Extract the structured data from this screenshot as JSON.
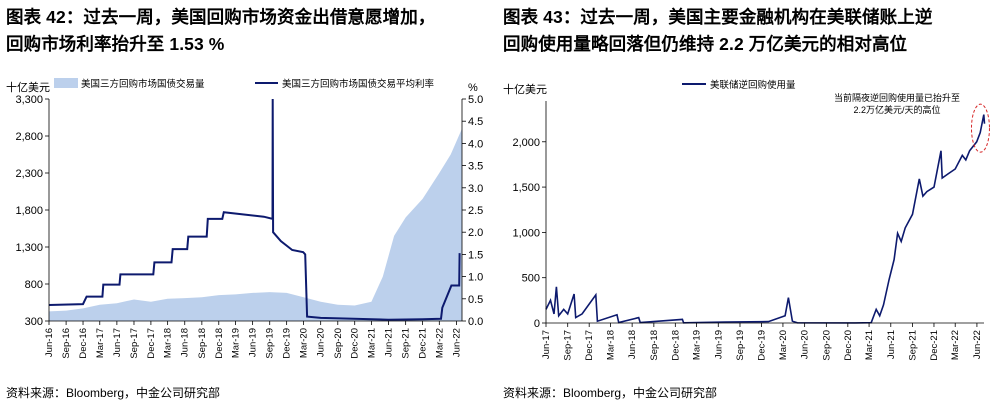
{
  "panels": [
    {
      "title_lines": [
        "图表 42：过去一周，美国回购市场资金出借意愿增加，",
        "回购市场利率抬升至 1.53 %"
      ],
      "source": "资料来源：Bloomberg，中金公司研究部"
    },
    {
      "title_lines": [
        "图表 43：过去一周，美国主要金融机构在美联储账上逆",
        "回购使用量略回落但仍维持 2.2 万亿美元的相对高位"
      ],
      "source": "资料来源：Bloomberg，中金公司研究部"
    }
  ],
  "chart_data": [
    {
      "type": "area+line",
      "title": "",
      "y_left_label": "十亿美元",
      "y_right_label": "%",
      "y_left_ticks": [
        300,
        800,
        1300,
        1800,
        2300,
        2800,
        3300
      ],
      "y_right_ticks": [
        "0.0",
        "0.5",
        "1.0",
        "1.5",
        "2.0",
        "2.5",
        "3.0",
        "3.5",
        "4.0",
        "4.5",
        "5.0"
      ],
      "ylim_left": [
        300,
        3300
      ],
      "ylim_right": [
        0,
        5
      ],
      "x_ticks": [
        "Jun-16",
        "Sep-16",
        "Dec-16",
        "Mar-17",
        "Jun-17",
        "Sep-17",
        "Dec-17",
        "Mar-18",
        "Jun-18",
        "Sep-18",
        "Dec-18",
        "Mar-19",
        "Jun-19",
        "Sep-19",
        "Dec-19",
        "Mar-20",
        "Jun-20",
        "Sep-20",
        "Dec-20",
        "Mar-21",
        "Jun-21",
        "Sep-21",
        "Dec-21",
        "Mar-22",
        "Jun-22"
      ],
      "xlim": [
        "2016-06",
        "2022-07"
      ],
      "legend": [
        "美国三方回购市场国债交易量",
        "美国三方回购市场国债交易平均利率"
      ],
      "legend_position": "top",
      "series": [
        {
          "name": "美国三方回购市场国债交易量",
          "axis": "left",
          "style": "area",
          "color": "#bcd0ec",
          "points": [
            [
              "2016-06-01",
              430
            ],
            [
              "2016-09-01",
              440
            ],
            [
              "2016-12-01",
              470
            ],
            [
              "2017-03-01",
              520
            ],
            [
              "2017-06-01",
              540
            ],
            [
              "2017-09-01",
              590
            ],
            [
              "2017-12-01",
              560
            ],
            [
              "2018-03-01",
              600
            ],
            [
              "2018-06-01",
              610
            ],
            [
              "2018-09-01",
              620
            ],
            [
              "2018-12-01",
              650
            ],
            [
              "2019-03-01",
              660
            ],
            [
              "2019-06-01",
              680
            ],
            [
              "2019-09-01",
              690
            ],
            [
              "2019-12-01",
              680
            ],
            [
              "2020-03-01",
              620
            ],
            [
              "2020-06-01",
              560
            ],
            [
              "2020-09-01",
              520
            ],
            [
              "2020-12-01",
              510
            ],
            [
              "2021-03-01",
              560
            ],
            [
              "2021-05-01",
              900
            ],
            [
              "2021-07-01",
              1450
            ],
            [
              "2021-09-01",
              1700
            ],
            [
              "2021-12-01",
              1950
            ],
            [
              "2022-03-01",
              2300
            ],
            [
              "2022-05-01",
              2550
            ],
            [
              "2022-07-01",
              2900
            ]
          ]
        },
        {
          "name": "美国三方回购市场国债交易平均利率",
          "axis": "right",
          "style": "line",
          "color": "#0d1a6e",
          "points": [
            [
              "2016-06-01",
              0.36
            ],
            [
              "2016-12-01",
              0.38
            ],
            [
              "2016-12-20",
              0.55
            ],
            [
              "2017-03-15",
              0.55
            ],
            [
              "2017-03-20",
              0.82
            ],
            [
              "2017-06-15",
              0.82
            ],
            [
              "2017-06-20",
              1.05
            ],
            [
              "2017-12-14",
              1.05
            ],
            [
              "2017-12-20",
              1.32
            ],
            [
              "2018-03-22",
              1.32
            ],
            [
              "2018-03-28",
              1.62
            ],
            [
              "2018-06-14",
              1.62
            ],
            [
              "2018-06-20",
              1.9
            ],
            [
              "2018-09-27",
              1.9
            ],
            [
              "2018-10-03",
              2.3
            ],
            [
              "2018-12-20",
              2.3
            ],
            [
              "2018-12-28",
              2.45
            ],
            [
              "2019-07-31",
              2.35
            ],
            [
              "2019-09-16",
              2.3
            ],
            [
              "2019-09-17",
              5.0
            ],
            [
              "2019-09-19",
              2.0
            ],
            [
              "2019-10-31",
              1.8
            ],
            [
              "2019-12-31",
              1.6
            ],
            [
              "2020-02-28",
              1.55
            ],
            [
              "2020-03-10",
              1.5
            ],
            [
              "2020-03-20",
              0.1
            ],
            [
              "2020-06-01",
              0.07
            ],
            [
              "2021-06-01",
              0.03
            ],
            [
              "2021-12-01",
              0.04
            ],
            [
              "2022-03-10",
              0.05
            ],
            [
              "2022-03-17",
              0.3
            ],
            [
              "2022-05-05",
              0.8
            ],
            [
              "2022-06-16",
              0.8
            ],
            [
              "2022-06-18",
              1.53
            ]
          ]
        }
      ]
    },
    {
      "type": "line",
      "title": "",
      "y_label": "十亿美元",
      "y_ticks": [
        "0",
        "500",
        "1,000",
        "1,500",
        "2,000"
      ],
      "ylim": [
        0,
        2450
      ],
      "x_ticks": [
        "Jun-17",
        "Sep-17",
        "Dec-17",
        "Mar-18",
        "Jun-18",
        "Sep-18",
        "Dec-18",
        "Mar-19",
        "Jun-19",
        "Sep-19",
        "Dec-19",
        "Mar-20",
        "Jun-20",
        "Sep-20",
        "Dec-20",
        "Mar-21",
        "Jun-21",
        "Sep-21",
        "Dec-21",
        "Mar-22",
        "Jun-22"
      ],
      "xlim": [
        "2017-06",
        "2022-07"
      ],
      "legend": [
        "美联储逆回购使用量"
      ],
      "legend_position": "top",
      "annotation": "当前隔夜逆回购使用量已抬升至\n2.2万亿美元/天的高位",
      "series": [
        {
          "name": "美联储逆回购使用量",
          "color": "#0d1a6e",
          "points": [
            [
              "2017-06-01",
              150
            ],
            [
              "2017-06-20",
              250
            ],
            [
              "2017-07-05",
              100
            ],
            [
              "2017-07-15",
              400
            ],
            [
              "2017-07-25",
              80
            ],
            [
              "2017-08-15",
              150
            ],
            [
              "2017-09-01",
              100
            ],
            [
              "2017-09-28",
              320
            ],
            [
              "2017-10-05",
              60
            ],
            [
              "2017-11-01",
              100
            ],
            [
              "2017-12-29",
              310
            ],
            [
              "2018-01-05",
              20
            ],
            [
              "2018-03-29",
              90
            ],
            [
              "2018-04-05",
              5
            ],
            [
              "2018-06-29",
              60
            ],
            [
              "2018-07-05",
              5
            ],
            [
              "2018-12-31",
              40
            ],
            [
              "2019-01-05",
              2
            ],
            [
              "2019-06-28",
              10
            ],
            [
              "2019-12-31",
              15
            ],
            [
              "2020-03-10",
              80
            ],
            [
              "2020-03-24",
              280
            ],
            [
              "2020-04-10",
              20
            ],
            [
              "2020-05-01",
              2
            ],
            [
              "2021-01-01",
              1
            ],
            [
              "2021-03-10",
              3
            ],
            [
              "2021-03-31",
              150
            ],
            [
              "2021-04-15",
              80
            ],
            [
              "2021-05-01",
              200
            ],
            [
              "2021-05-25",
              480
            ],
            [
              "2021-06-15",
              700
            ],
            [
              "2021-06-30",
              990
            ],
            [
              "2021-07-15",
              900
            ],
            [
              "2021-08-01",
              1050
            ],
            [
              "2021-09-01",
              1200
            ],
            [
              "2021-09-30",
              1590
            ],
            [
              "2021-10-15",
              1400
            ],
            [
              "2021-11-01",
              1450
            ],
            [
              "2021-12-01",
              1500
            ],
            [
              "2021-12-31",
              1900
            ],
            [
              "2022-01-05",
              1600
            ],
            [
              "2022-02-01",
              1650
            ],
            [
              "2022-03-01",
              1700
            ],
            [
              "2022-03-31",
              1850
            ],
            [
              "2022-04-15",
              1800
            ],
            [
              "2022-05-01",
              1900
            ],
            [
              "2022-05-31",
              2000
            ],
            [
              "2022-06-15",
              2100
            ],
            [
              "2022-06-30",
              2300
            ],
            [
              "2022-07-03",
              2200
            ]
          ]
        }
      ]
    }
  ]
}
